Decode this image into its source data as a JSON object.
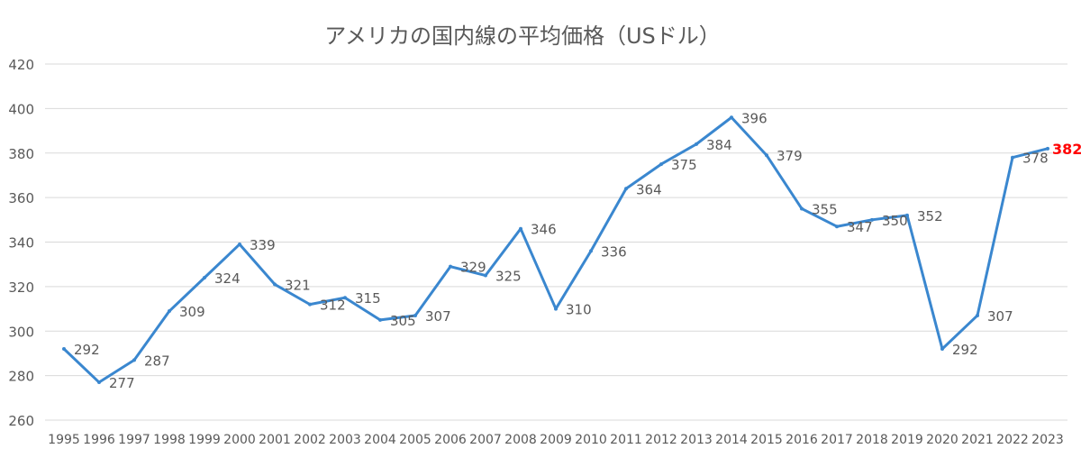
{
  "chart_data": {
    "type": "line",
    "title": "アメリカの国内線の平均価格（USドル）",
    "xlabel": "",
    "ylabel": "",
    "ylim": [
      260,
      420
    ],
    "yticks": [
      260,
      280,
      300,
      320,
      340,
      360,
      380,
      400,
      420
    ],
    "grid": true,
    "legend": "none",
    "categories": [
      "1995",
      "1996",
      "1997",
      "1998",
      "1999",
      "2000",
      "2001",
      "2002",
      "2003",
      "2004",
      "2005",
      "2006",
      "2007",
      "2008",
      "2009",
      "2010",
      "2011",
      "2012",
      "2013",
      "2014",
      "2015",
      "2016",
      "2017",
      "2018",
      "2019",
      "2020",
      "2021",
      "2022",
      "2023"
    ],
    "series": [
      {
        "name": "平均価格",
        "color": "#3a87cf",
        "values": [
          292,
          277,
          287,
          309,
          324,
          339,
          321,
          312,
          315,
          305,
          307,
          329,
          325,
          346,
          310,
          336,
          364,
          375,
          384,
          396,
          379,
          355,
          347,
          350,
          352,
          292,
          307,
          378,
          382
        ]
      }
    ],
    "highlight": {
      "index": 28,
      "color": "#ff0000"
    }
  }
}
